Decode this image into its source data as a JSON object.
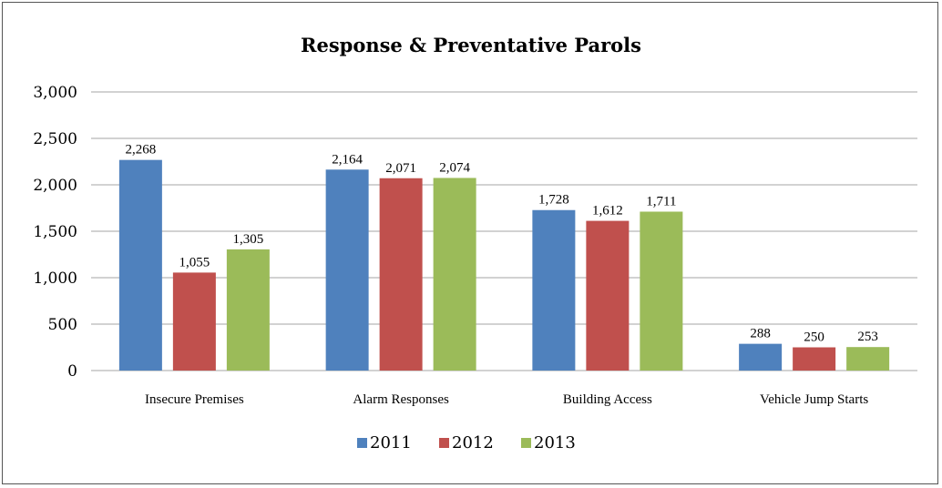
{
  "chart_data": {
    "type": "bar",
    "title": "Response & Preventative Parols",
    "categories": [
      "Insecure Premises",
      "Alarm Responses",
      "Building Access",
      "Vehicle Jump Starts"
    ],
    "series": [
      {
        "name": "2011",
        "color": "#4f81bd",
        "values": [
          2268,
          2164,
          1728,
          288
        ],
        "labels": [
          "2,268",
          "2,164",
          "1,728",
          "288"
        ]
      },
      {
        "name": "2012",
        "color": "#c0504d",
        "values": [
          1055,
          2071,
          1612,
          250
        ],
        "labels": [
          "1,055",
          "2,071",
          "1,612",
          "250"
        ]
      },
      {
        "name": "2013",
        "color": "#9bbb59",
        "values": [
          1305,
          2074,
          1711,
          253
        ],
        "labels": [
          "1,305",
          "2,074",
          "1,711",
          "253"
        ]
      }
    ],
    "ylim": [
      0,
      3000
    ],
    "yticks": [
      0,
      500,
      1000,
      1500,
      2000,
      2500,
      3000
    ],
    "ytick_labels": [
      "0",
      "500",
      "1,000",
      "1,500",
      "2,000",
      "2,500",
      "3,000"
    ],
    "grid": true,
    "legend_position": "bottom",
    "gridline_color": "#a6a6a6"
  }
}
